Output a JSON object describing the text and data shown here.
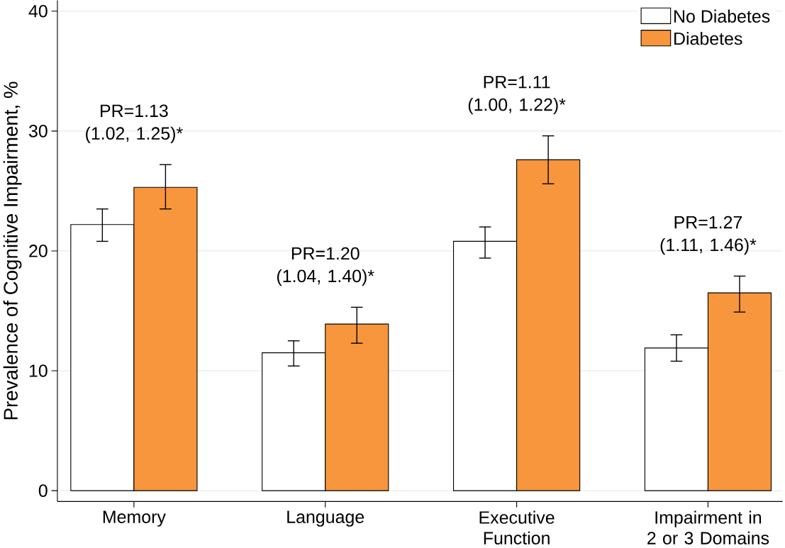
{
  "chart_data": {
    "type": "bar",
    "ylabel": "Prevalence of Cognitive Impairment, %",
    "categories": [
      "Memory",
      "Language",
      "Executive Function",
      "Impairment in 2 or 3 Domains"
    ],
    "series": [
      {
        "name": "No Diabetes",
        "color": "#ffffff",
        "values": [
          22.2,
          11.5,
          20.8,
          11.9
        ],
        "errors": [
          [
            20.8,
            23.5
          ],
          [
            10.4,
            12.5
          ],
          [
            19.4,
            22.0
          ],
          [
            10.8,
            13.0
          ]
        ]
      },
      {
        "name": "Diabetes",
        "color": "#f7963c",
        "values": [
          25.3,
          13.9,
          27.6,
          16.5
        ],
        "errors": [
          [
            23.5,
            27.2
          ],
          [
            12.3,
            15.3
          ],
          [
            25.6,
            29.6
          ],
          [
            14.9,
            17.9
          ]
        ]
      }
    ],
    "annotations": [
      "PR=1.13 (1.02, 1.25)*",
      "PR=1.20 (1.04, 1.40)*",
      "PR=1.11 (1.00, 1.22)*",
      "PR=1.27 (1.11, 1.46)*"
    ],
    "ylim": [
      -0.9,
      40.9
    ],
    "yticks": [
      0,
      10,
      20,
      30,
      40
    ],
    "grid": "y",
    "legend": "top right"
  }
}
